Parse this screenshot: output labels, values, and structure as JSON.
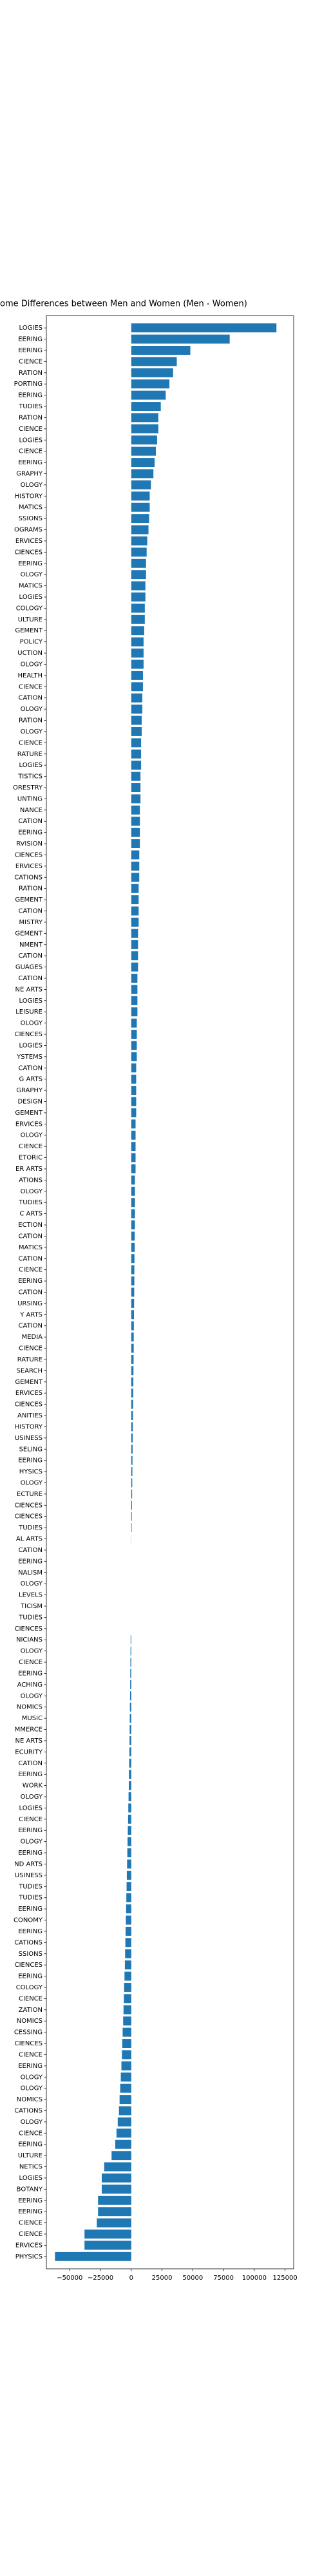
{
  "chart_data": {
    "type": "barh",
    "title": "ome Differences between Men and Women (Men - Women)",
    "color": "#1f77b4",
    "categories": [
      "LOGIES",
      "EERING",
      "EERING",
      "CIENCE",
      "RATION",
      "PORTING",
      "EERING",
      "TUDIES",
      "RATION",
      "CIENCE",
      "LOGIES",
      "CIENCE",
      "EERING",
      "GRAPHY",
      "OLOGY",
      "HISTORY",
      "MATICS",
      "SSIONS",
      "OGRAMS",
      "ERVICES",
      "CIENCES",
      "EERING",
      "OLOGY",
      "MATICS",
      "LOGIES",
      "COLOGY",
      "ULTURE",
      "GEMENT",
      "POLICY",
      "UCTION",
      "OLOGY",
      "HEALTH",
      "CIENCE",
      "CATION",
      "OLOGY",
      "RATION",
      "OLOGY",
      "CIENCE",
      "RATURE",
      "LOGIES",
      "TISTICS",
      "ORESTRY",
      "UNTING",
      "NANCE",
      "CATION",
      "EERING",
      "RVISION",
      "CIENCES",
      "ERVICES",
      "CATIONS",
      "RATION",
      "GEMENT",
      "CATION",
      "MISTRY",
      "GEMENT",
      "NMENT",
      "CATION",
      "GUAGES",
      "CATION",
      "NE ARTS",
      "LOGIES",
      "LEISURE",
      "OLOGY",
      "CIENCES",
      "LOGIES",
      "YSTEMS",
      "CATION",
      "G ARTS",
      "GRAPHY",
      "DESIGN",
      "GEMENT",
      "ERVICES",
      "OLOGY",
      "CIENCE",
      "ETORIC",
      "ER ARTS",
      "ATIONS",
      "OLOGY",
      "TUDIES",
      "C ARTS",
      "ECTION",
      "CATION",
      "MATICS",
      "CATION",
      "CIENCE",
      "EERING",
      "CATION",
      "URSING",
      "Y ARTS",
      "CATION",
      "MEDIA",
      "CIENCE",
      "RATURE",
      "SEARCH",
      "GEMENT",
      "ERVICES",
      "CIENCES",
      "ANITIES",
      "HISTORY",
      "USINESS",
      "SELING",
      "EERING",
      "HYSICS",
      "OLOGY",
      "ECTURE",
      "CIENCES",
      "CIENCES",
      "TUDIES",
      "AL ARTS",
      "CATION",
      "EERING",
      "NALISM",
      "OLOGY",
      "LEVELS",
      "TICISM",
      "TUDIES",
      "CIENCES",
      "NICIANS",
      "OLOGY",
      "CIENCE",
      "EERING",
      "ACHING",
      "OLOGY",
      "NOMICS",
      "MUSIC",
      "MMERCE",
      "NE ARTS",
      "ECURITY",
      "CATION",
      "EERING",
      "WORK",
      "OLOGY",
      "LOGIES",
      "CIENCE",
      "EERING",
      "OLOGY",
      "EERING",
      "ND ARTS",
      "USINESS",
      "TUDIES",
      "TUDIES",
      "EERING",
      "CONOMY",
      "EERING",
      "CATIONS",
      "SSIONS",
      "CIENCES",
      "EERING",
      "COLOGY",
      "CIENCE",
      "ZATION",
      "NOMICS",
      "CESSING",
      "CIENCES",
      "CIENCE",
      "EERING",
      "OLOGY",
      "OLOGY",
      "NOMICS",
      "CATIONS",
      "OLOGY",
      "CIENCE",
      "EERING",
      "ULTURE",
      "NETICS",
      "LOGIES",
      "BOTANY",
      "EERING",
      "EERING",
      "CIENCE",
      "CIENCE",
      "ERVICES",
      "PHYSICS"
    ],
    "values": [
      118000,
      80000,
      48000,
      37000,
      34000,
      31000,
      28000,
      24000,
      22000,
      22000,
      21000,
      20000,
      19000,
      18000,
      16000,
      15000,
      15000,
      14500,
      14000,
      13000,
      12500,
      12000,
      12000,
      11500,
      11500,
      11000,
      11000,
      10500,
      10000,
      10000,
      10000,
      9500,
      9500,
      9000,
      9000,
      8500,
      8500,
      8000,
      8000,
      8000,
      7500,
      7500,
      7500,
      7000,
      7000,
      7000,
      7000,
      6500,
      6500,
      6500,
      6000,
      6000,
      6000,
      6000,
      5500,
      5500,
      5500,
      5500,
      5000,
      5000,
      5000,
      5000,
      4500,
      4500,
      4500,
      4500,
      4000,
      4000,
      4000,
      4000,
      4000,
      3500,
      3500,
      3500,
      3500,
      3500,
      3000,
      3000,
      3000,
      3000,
      3000,
      2800,
      2800,
      2600,
      2500,
      2500,
      2400,
      2300,
      2200,
      2100,
      2000,
      2000,
      1900,
      1800,
      1700,
      1600,
      1500,
      1400,
      1300,
      1200,
      1100,
      1000,
      900,
      800,
      700,
      600,
      500,
      400,
      100,
      0,
      0,
      0,
      0,
      0,
      0,
      0,
      0,
      -500,
      -600,
      -700,
      -800,
      -900,
      -1000,
      -1100,
      -1200,
      -1300,
      -1400,
      -1500,
      -1700,
      -1900,
      -2000,
      -2200,
      -2400,
      -2600,
      -2800,
      -3000,
      -3200,
      -3400,
      -3600,
      -3800,
      -4000,
      -4200,
      -4400,
      -4600,
      -4800,
      -5000,
      -5200,
      -5500,
      -5800,
      -6000,
      -6300,
      -6600,
      -7000,
      -7300,
      -7600,
      -8000,
      -8500,
      -9000,
      -9500,
      -10000,
      -11000,
      -12000,
      -13000,
      -16000,
      -22000,
      -24000,
      -24000,
      -27000,
      -27000,
      -28000,
      -38000,
      -38000,
      -62000
    ],
    "xlim": [
      -69000,
      132000
    ],
    "xticks": [
      {
        "value": -50000,
        "label": "−50000"
      },
      {
        "value": -25000,
        "label": "−25000"
      },
      0,
      25000,
      50000,
      75000,
      100000,
      125000
    ]
  }
}
